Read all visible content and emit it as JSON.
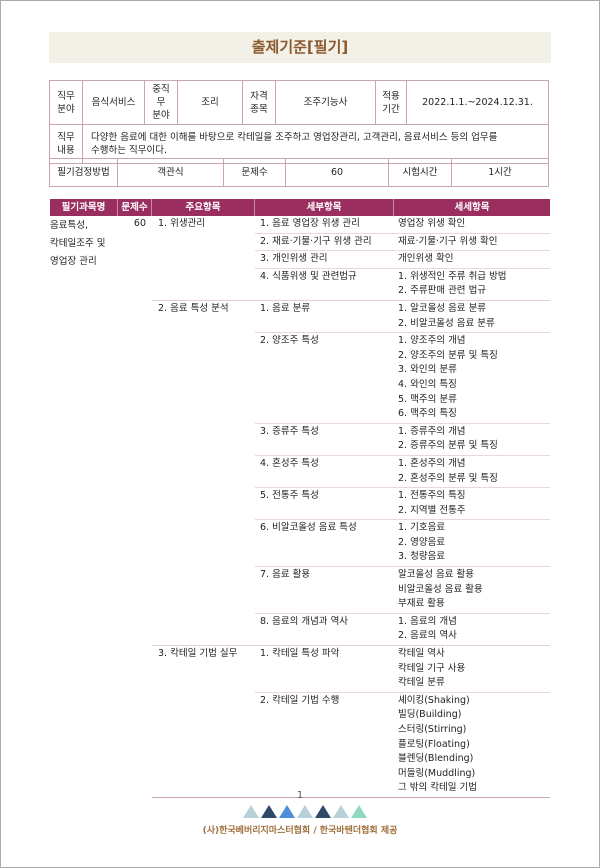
{
  "title": "출제기준[필기]",
  "info": {
    "job_field_label": "직무\n분야",
    "job_field": "음식서비스",
    "sub_field_label": "중직무\n분야",
    "sub_field": "조리",
    "cert_label": "자격\n종목",
    "cert": "조주기능사",
    "period_label": "적용\n기간",
    "period": "2022.1.1.~2024.12.31.",
    "duty_label": "직무\n내용",
    "duty": "다양한 음료에 대한 이해를 바탕으로 칵테일을 조주하고 영업장관리, 고객관리, 음료서비스 등의 업무를 수행하는 직무이다.",
    "method_label": "필기검정방법",
    "method": "객관식",
    "count_label": "문제수",
    "count": "60",
    "time_label": "시험시간",
    "time": "1시간"
  },
  "table": {
    "headers": [
      "필기과목명",
      "문제수",
      "주요항목",
      "세부항목",
      "세세항목"
    ],
    "subject": "음료특성,\n칵테일조주 및\n영업장 관리",
    "subject_count": "60",
    "groups": [
      {
        "main": "1. 위생관리",
        "rows": [
          {
            "detail": "1. 음료 영업장 위생 관리",
            "subs": [
              "영업장 위생 확인"
            ]
          },
          {
            "detail": "2. 재료·기물·기구 위생 관리",
            "subs": [
              "재료·기물·기구 위생 확인"
            ]
          },
          {
            "detail": "3. 개인위생 관리",
            "subs": [
              "개인위생 확인"
            ]
          },
          {
            "detail": "4. 식품위생 및 관련법규",
            "subs": [
              "1. 위생적인 주류 취급 방법",
              "2. 주류판매 관련 법규"
            ]
          }
        ]
      },
      {
        "main": "2. 음료 특성 분석",
        "rows": [
          {
            "detail": "1. 음료 분류",
            "subs": [
              "1. 알코올성 음료 분류",
              "2. 비알코올성 음료 분류"
            ]
          },
          {
            "detail": "2. 양조주 특성",
            "subs": [
              "1. 양조주의 개념",
              "2. 양조주의 분류 및 특징",
              "3. 와인의 분류",
              "4. 와인의 특징",
              "5. 맥주의 분류",
              "6. 맥주의 특징"
            ]
          },
          {
            "detail": "3. 증류주 특성",
            "subs": [
              "1. 증류주의 개념",
              "2. 증류주의 분류 및 특징"
            ]
          },
          {
            "detail": "4. 혼성주 특성",
            "subs": [
              "1. 혼성주의 개념",
              "2. 혼성주의 분류 및 특징"
            ]
          },
          {
            "detail": "5. 전통주 특성",
            "subs": [
              "1. 전통주의 특징",
              "2. 지역별 전통주"
            ]
          },
          {
            "detail": "6. 비알코올성 음료 특성",
            "subs": [
              "1. 기호음료",
              "2. 영양음료",
              "3. 청량음료"
            ]
          },
          {
            "detail": "7. 음료 활용",
            "subs": [
              "알코올성 음료 활용",
              "비알코올성 음료 활용",
              "부재료 활용"
            ]
          },
          {
            "detail": "8. 음료의 개념과 역사",
            "subs": [
              "1. 음료의 개념",
              "2. 음료의 역사"
            ]
          }
        ]
      },
      {
        "main": "3. 칵테일 기법 실무",
        "rows": [
          {
            "detail": "1. 칵테일 특성 파악",
            "subs": [
              "칵테일 역사",
              "칵테일 기구 사용",
              "칵테일 분류"
            ]
          },
          {
            "detail": "2. 칵테일 기법 수행",
            "subs": [
              "셰이킹(Shaking)",
              "빌딩(Building)",
              "스터링(Stirring)",
              "플로팅(Floating)",
              "블렌딩(Blending)",
              "머들링(Muddling)",
              "그 밖의 칵테일 기법"
            ]
          }
        ]
      }
    ]
  },
  "footer": {
    "page": "1",
    "credit": "(사)한국베버리지마스터협회 / 한국바텐더협회 제공",
    "triangle_colors": [
      "#b7d0d9",
      "#2f4a68",
      "#4c8fd6",
      "#b7d0d9",
      "#2f4a68",
      "#b7d0d9",
      "#8fd8c2"
    ]
  },
  "colors": {
    "header_bg": "#9a2f5f",
    "title": "#8a5a2e",
    "border": "#c9a5b6"
  }
}
